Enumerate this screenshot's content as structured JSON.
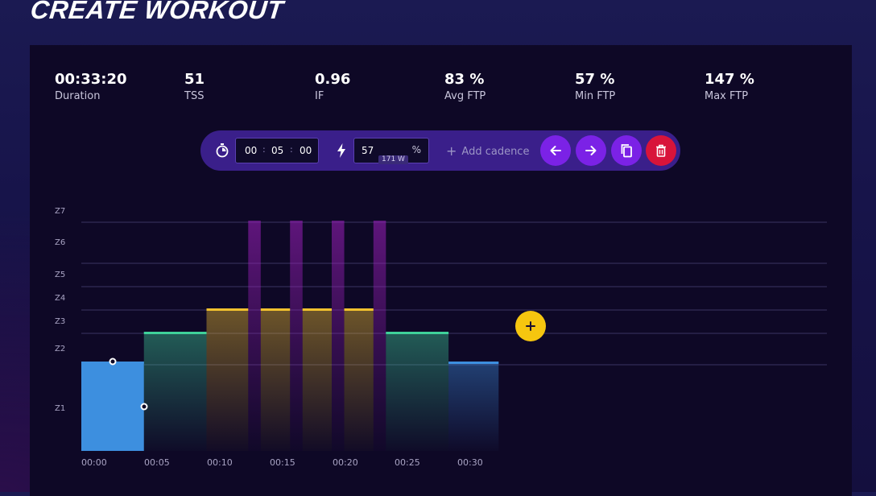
{
  "page": {
    "title": "CREATE WORKOUT"
  },
  "stats": [
    {
      "value": "00:33:20",
      "label": "Duration"
    },
    {
      "value": "51",
      "label": "TSS"
    },
    {
      "value": "0.96",
      "label": "IF"
    },
    {
      "value": "83 %",
      "label": "Avg FTP"
    },
    {
      "value": "57 %",
      "label": "Min FTP"
    },
    {
      "value": "147 %",
      "label": "Max FTP"
    }
  ],
  "toolbar": {
    "duration": {
      "hours": "00",
      "minutes": "05",
      "seconds": "00"
    },
    "power": {
      "value": "57",
      "unit": "%",
      "watts": "171 W"
    },
    "add_cadence_label": "Add cadence",
    "icons": {
      "timer": "stopwatch-icon",
      "power": "lightning-icon",
      "prev": "arrow-left-icon",
      "next": "arrow-right-icon",
      "copy": "copy-icon",
      "delete": "trash-icon"
    }
  },
  "colors": {
    "accent": "#7b22e6",
    "danger": "#d8143a",
    "add_block": "#f6c60f",
    "z1": "#3d8fdf",
    "z2": "#3fd19a",
    "z4": "#f2c12e",
    "z7": "#a020c0"
  },
  "zone_labels": [
    "Z7",
    "Z6",
    "Z5",
    "Z4",
    "Z3",
    "Z2",
    "Z1"
  ],
  "time_labels": [
    "00:00",
    "00:05",
    "00:10",
    "00:15",
    "00:20",
    "00:25",
    "00:30"
  ],
  "chart_data": {
    "type": "bar",
    "x_unit": "minutes",
    "blocks": [
      {
        "start": 0,
        "end": 5,
        "zone": "Z2",
        "selected": true
      },
      {
        "start": 5,
        "end": 10,
        "zone": "Z3"
      },
      {
        "start": 10,
        "end": 13.33,
        "zone": "Z4"
      },
      {
        "start": 13.33,
        "end": 14.33,
        "zone": "Z7"
      },
      {
        "start": 14.33,
        "end": 16.67,
        "zone": "Z4"
      },
      {
        "start": 16.67,
        "end": 17.67,
        "zone": "Z7"
      },
      {
        "start": 17.67,
        "end": 20,
        "zone": "Z4"
      },
      {
        "start": 20,
        "end": 21,
        "zone": "Z7"
      },
      {
        "start": 21,
        "end": 23.33,
        "zone": "Z4"
      },
      {
        "start": 23.33,
        "end": 24.33,
        "zone": "Z7"
      },
      {
        "start": 24.33,
        "end": 29.33,
        "zone": "Z3"
      },
      {
        "start": 29.33,
        "end": 33.33,
        "zone": "Z2"
      }
    ],
    "xlim": [
      0,
      60
    ]
  },
  "add_block_icon": "plus-icon"
}
